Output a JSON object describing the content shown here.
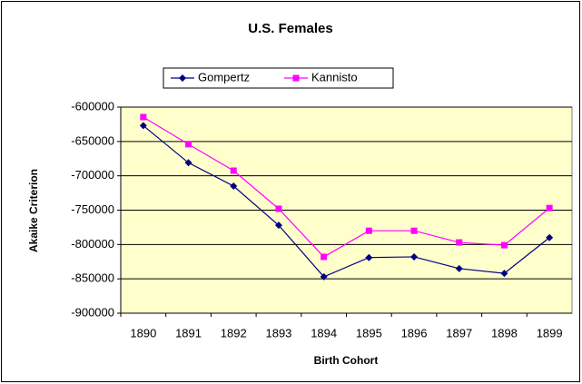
{
  "chart_data": {
    "type": "line",
    "title": "U.S. Females",
    "xlabel": "Birth Cohort",
    "ylabel": "Akaike Criterion",
    "categories": [
      "1890",
      "1891",
      "1892",
      "1893",
      "1894",
      "1895",
      "1896",
      "1897",
      "1898",
      "1899"
    ],
    "series": [
      {
        "name": "Gompertz",
        "color": "#000080",
        "marker": "diamond",
        "values": [
          -627000,
          -681000,
          -715000,
          -772000,
          -847000,
          -819000,
          -818000,
          -835000,
          -842000,
          -790000
        ]
      },
      {
        "name": "Kannisto",
        "color": "#FF00FF",
        "marker": "square",
        "values": [
          -614500,
          -654000,
          -692500,
          -748000,
          -818000,
          -780000,
          -780000,
          -797000,
          -801000,
          -747000
        ]
      }
    ],
    "ylim": [
      -900000,
      -600000
    ],
    "yticks": [
      -900000,
      -850000,
      -800000,
      -750000,
      -700000,
      -650000,
      -600000
    ],
    "grid": true,
    "legend": "top",
    "plot_background": "#FFFFCC"
  }
}
